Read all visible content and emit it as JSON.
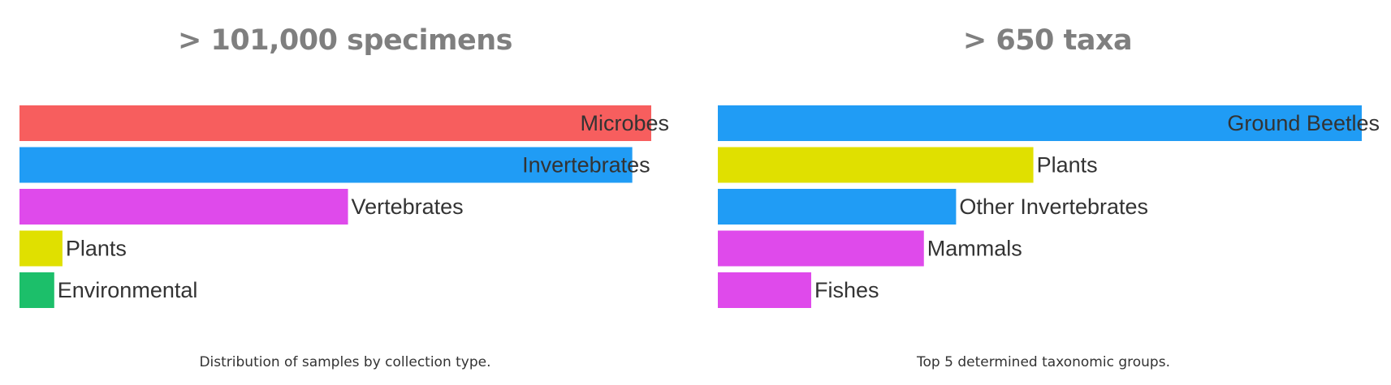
{
  "chart_data": [
    {
      "type": "bar",
      "orientation": "horizontal",
      "title": "> 101,000 specimens",
      "caption": "Distribution of samples by collection type.",
      "categories": [
        "Microbes",
        "Invertebrates",
        "Vertebrates",
        "Plants",
        "Environmental"
      ],
      "values": [
        100,
        97,
        52,
        6.8,
        5.5
      ],
      "colors": [
        "#f75e5e",
        "#209cf5",
        "#df4aeb",
        "#e0e000",
        "#1cbf6a"
      ],
      "xlim": [
        0,
        100
      ],
      "grid": false,
      "legend": "none"
    },
    {
      "type": "bar",
      "orientation": "horizontal",
      "title": "> 650 taxa",
      "caption": "Top 5 determined taxonomic groups.",
      "categories": [
        "Ground Beetles",
        "Plants",
        "Other Invertebrates",
        "Mammals",
        "Fishes"
      ],
      "values": [
        100,
        49,
        37,
        32,
        14.5
      ],
      "colors": [
        "#209cf5",
        "#e0e000",
        "#209cf5",
        "#df4aeb",
        "#df4aeb"
      ],
      "xlim": [
        0,
        100
      ],
      "grid": false,
      "legend": "none"
    }
  ]
}
